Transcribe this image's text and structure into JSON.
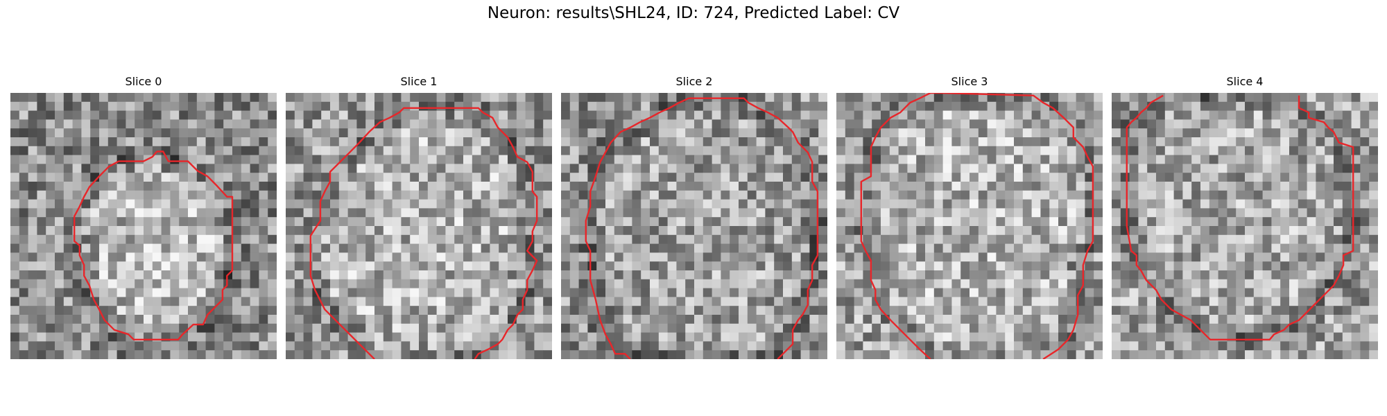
{
  "figure": {
    "title": "Neuron: results\\SHL24, ID: 724, Predicted Label: CV",
    "grid_size": 30,
    "contour_color": "#e8262a",
    "colormap": "gray"
  },
  "slices": [
    {
      "title": "Slice 0",
      "seed": 11,
      "background_level": 0.55,
      "inside_level": 0.72,
      "contour": [
        [
          16.5,
          6.6
        ],
        [
          17.2,
          6.6
        ],
        [
          17.8,
          7.7
        ],
        [
          20.0,
          7.7
        ],
        [
          21.1,
          8.8
        ],
        [
          22.2,
          9.4
        ],
        [
          23.3,
          10.5
        ],
        [
          24.4,
          11.7
        ],
        [
          25.0,
          11.7
        ],
        [
          25.0,
          20.0
        ],
        [
          24.4,
          20.6
        ],
        [
          24.4,
          21.7
        ],
        [
          23.9,
          22.2
        ],
        [
          23.9,
          23.3
        ],
        [
          22.8,
          24.4
        ],
        [
          22.2,
          25.0
        ],
        [
          21.7,
          26.1
        ],
        [
          20.6,
          26.1
        ],
        [
          19.4,
          27.2
        ],
        [
          18.9,
          27.8
        ],
        [
          13.9,
          27.8
        ],
        [
          13.3,
          27.2
        ],
        [
          11.7,
          26.7
        ],
        [
          10.6,
          25.6
        ],
        [
          10.0,
          24.4
        ],
        [
          9.4,
          23.3
        ],
        [
          8.9,
          21.7
        ],
        [
          8.3,
          20.6
        ],
        [
          8.3,
          19.4
        ],
        [
          7.8,
          18.3
        ],
        [
          7.8,
          17.2
        ],
        [
          7.2,
          16.7
        ],
        [
          7.2,
          13.9
        ],
        [
          7.8,
          12.8
        ],
        [
          8.3,
          11.7
        ],
        [
          8.9,
          10.6
        ],
        [
          10.0,
          9.4
        ],
        [
          11.1,
          8.3
        ],
        [
          12.2,
          7.7
        ],
        [
          15.0,
          7.7
        ],
        [
          16.0,
          7.2
        ],
        [
          16.5,
          6.6
        ]
      ]
    },
    {
      "title": "Slice 1",
      "seed": 23,
      "background_level": 0.6,
      "inside_level": 0.7,
      "contour": [
        [
          10.0,
          30.0
        ],
        [
          9.0,
          29.0
        ],
        [
          7.8,
          27.8
        ],
        [
          6.7,
          26.7
        ],
        [
          5.6,
          25.6
        ],
        [
          4.4,
          24.4
        ],
        [
          3.3,
          22.2
        ],
        [
          2.8,
          20.6
        ],
        [
          2.8,
          16.1
        ],
        [
          3.9,
          14.4
        ],
        [
          3.9,
          12.2
        ],
        [
          4.4,
          11.1
        ],
        [
          5.0,
          10.0
        ],
        [
          5.0,
          8.9
        ],
        [
          6.1,
          7.8
        ],
        [
          7.2,
          6.7
        ],
        [
          8.3,
          5.6
        ],
        [
          9.4,
          4.4
        ],
        [
          10.6,
          3.3
        ],
        [
          11.7,
          2.8
        ],
        [
          12.8,
          2.2
        ],
        [
          13.3,
          1.7
        ],
        [
          21.7,
          1.7
        ],
        [
          22.2,
          2.2
        ],
        [
          23.3,
          2.8
        ],
        [
          23.9,
          3.9
        ],
        [
          25.0,
          5.0
        ],
        [
          25.6,
          6.1
        ],
        [
          26.1,
          7.2
        ],
        [
          27.2,
          7.8
        ],
        [
          27.8,
          8.9
        ],
        [
          27.8,
          11.1
        ],
        [
          28.3,
          11.7
        ],
        [
          28.3,
          14.4
        ],
        [
          27.8,
          15.6
        ],
        [
          27.8,
          16.7
        ],
        [
          27.2,
          17.8
        ],
        [
          28.3,
          18.9
        ],
        [
          27.8,
          20.0
        ],
        [
          27.2,
          21.1
        ],
        [
          27.2,
          22.2
        ],
        [
          26.7,
          23.3
        ],
        [
          26.7,
          24.4
        ],
        [
          26.1,
          25.0
        ],
        [
          25.6,
          26.1
        ],
        [
          25.0,
          26.7
        ],
        [
          24.4,
          27.8
        ],
        [
          23.9,
          28.3
        ],
        [
          22.8,
          28.9
        ],
        [
          21.7,
          29.4
        ],
        [
          21.3,
          30.0
        ]
      ]
    },
    {
      "title": "Slice 2",
      "seed": 37,
      "background_level": 0.58,
      "inside_level": 0.63,
      "contour": [
        [
          7.8,
          30.0
        ],
        [
          7.2,
          29.4
        ],
        [
          6.1,
          29.4
        ],
        [
          5.6,
          28.3
        ],
        [
          5.0,
          27.2
        ],
        [
          4.4,
          25.6
        ],
        [
          3.9,
          23.3
        ],
        [
          3.3,
          21.1
        ],
        [
          3.3,
          19.4
        ],
        [
          3.3,
          17.8
        ],
        [
          2.8,
          16.7
        ],
        [
          2.8,
          14.4
        ],
        [
          3.3,
          12.8
        ],
        [
          3.3,
          11.1
        ],
        [
          3.9,
          9.4
        ],
        [
          4.4,
          7.8
        ],
        [
          5.0,
          6.7
        ],
        [
          5.6,
          5.6
        ],
        [
          6.7,
          4.4
        ],
        [
          7.8,
          3.9
        ],
        [
          8.9,
          3.3
        ],
        [
          10.0,
          2.8
        ],
        [
          11.1,
          2.2
        ],
        [
          12.2,
          1.7
        ],
        [
          13.3,
          1.1
        ],
        [
          14.4,
          0.6
        ],
        [
          20.6,
          0.6
        ],
        [
          21.1,
          1.1
        ],
        [
          22.2,
          1.7
        ],
        [
          23.3,
          2.2
        ],
        [
          24.4,
          2.8
        ],
        [
          25.6,
          3.9
        ],
        [
          26.1,
          4.4
        ],
        [
          26.7,
          5.6
        ],
        [
          27.8,
          6.7
        ],
        [
          28.3,
          7.8
        ],
        [
          28.3,
          10.0
        ],
        [
          28.9,
          11.1
        ],
        [
          28.9,
          18.3
        ],
        [
          28.3,
          19.4
        ],
        [
          28.3,
          21.1
        ],
        [
          27.8,
          22.2
        ],
        [
          27.8,
          23.9
        ],
        [
          27.2,
          25.0
        ],
        [
          26.7,
          25.6
        ],
        [
          26.1,
          26.7
        ],
        [
          26.1,
          28.3
        ],
        [
          25.0,
          29.4
        ],
        [
          24.4,
          30.0
        ]
      ]
    },
    {
      "title": "Slice 3",
      "seed": 53,
      "background_level": 0.64,
      "inside_level": 0.7,
      "contour": [
        [
          10.6,
          30.0
        ],
        [
          9.4,
          28.9
        ],
        [
          8.3,
          27.8
        ],
        [
          7.2,
          26.7
        ],
        [
          6.1,
          25.6
        ],
        [
          5.0,
          24.4
        ],
        [
          4.4,
          23.3
        ],
        [
          4.4,
          22.2
        ],
        [
          3.9,
          21.1
        ],
        [
          3.9,
          18.9
        ],
        [
          3.3,
          17.8
        ],
        [
          2.8,
          16.7
        ],
        [
          2.8,
          15.6
        ],
        [
          2.8,
          10.0
        ],
        [
          3.9,
          9.4
        ],
        [
          3.9,
          6.1
        ],
        [
          4.4,
          5.0
        ],
        [
          5.0,
          3.9
        ],
        [
          6.1,
          2.8
        ],
        [
          7.2,
          2.2
        ],
        [
          8.3,
          1.1
        ],
        [
          9.4,
          0.6
        ],
        [
          10.6,
          0.0
        ],
        [
          11.7,
          0.0
        ],
        [
          22.2,
          0.3
        ],
        [
          23.3,
          1.1
        ],
        [
          24.4,
          1.7
        ],
        [
          25.6,
          2.8
        ],
        [
          26.7,
          3.9
        ],
        [
          26.7,
          5.0
        ],
        [
          27.8,
          6.1
        ],
        [
          28.3,
          7.2
        ],
        [
          28.9,
          8.3
        ],
        [
          28.9,
          16.7
        ],
        [
          28.3,
          17.8
        ],
        [
          27.8,
          19.4
        ],
        [
          27.8,
          21.7
        ],
        [
          27.2,
          22.8
        ],
        [
          27.2,
          25.0
        ],
        [
          26.7,
          26.7
        ],
        [
          26.1,
          27.8
        ],
        [
          25.0,
          28.9
        ],
        [
          23.3,
          30.0
        ]
      ]
    },
    {
      "title": "Slice 4",
      "seed": 71,
      "background_level": 0.63,
      "inside_level": 0.66,
      "contour": [
        [
          5.8,
          0.3
        ],
        [
          4.4,
          1.1
        ],
        [
          3.9,
          1.7
        ],
        [
          3.3,
          2.2
        ],
        [
          2.8,
          2.8
        ],
        [
          2.2,
          3.3
        ],
        [
          1.7,
          3.9
        ],
        [
          1.7,
          15.0
        ],
        [
          2.2,
          17.8
        ],
        [
          2.8,
          18.3
        ],
        [
          2.8,
          19.4
        ],
        [
          3.3,
          20.0
        ],
        [
          3.9,
          21.1
        ],
        [
          5.0,
          22.2
        ],
        [
          5.6,
          23.3
        ],
        [
          6.7,
          24.4
        ],
        [
          7.8,
          25.0
        ],
        [
          8.9,
          25.6
        ],
        [
          10.0,
          26.7
        ],
        [
          11.1,
          27.8
        ],
        [
          17.8,
          27.8
        ],
        [
          18.3,
          27.2
        ],
        [
          19.4,
          26.7
        ],
        [
          20.0,
          26.1
        ],
        [
          21.1,
          25.6
        ],
        [
          21.7,
          25.0
        ],
        [
          22.8,
          23.9
        ],
        [
          23.9,
          22.8
        ],
        [
          25.0,
          21.7
        ],
        [
          25.6,
          20.6
        ],
        [
          26.1,
          19.4
        ],
        [
          26.1,
          18.3
        ],
        [
          27.2,
          17.8
        ],
        [
          27.2,
          6.1
        ],
        [
          25.6,
          5.6
        ],
        [
          25.0,
          4.4
        ],
        [
          24.4,
          3.9
        ],
        [
          23.9,
          3.3
        ],
        [
          22.2,
          2.8
        ],
        [
          22.2,
          2.2
        ],
        [
          21.1,
          1.7
        ],
        [
          21.1,
          0.3
        ]
      ]
    }
  ]
}
